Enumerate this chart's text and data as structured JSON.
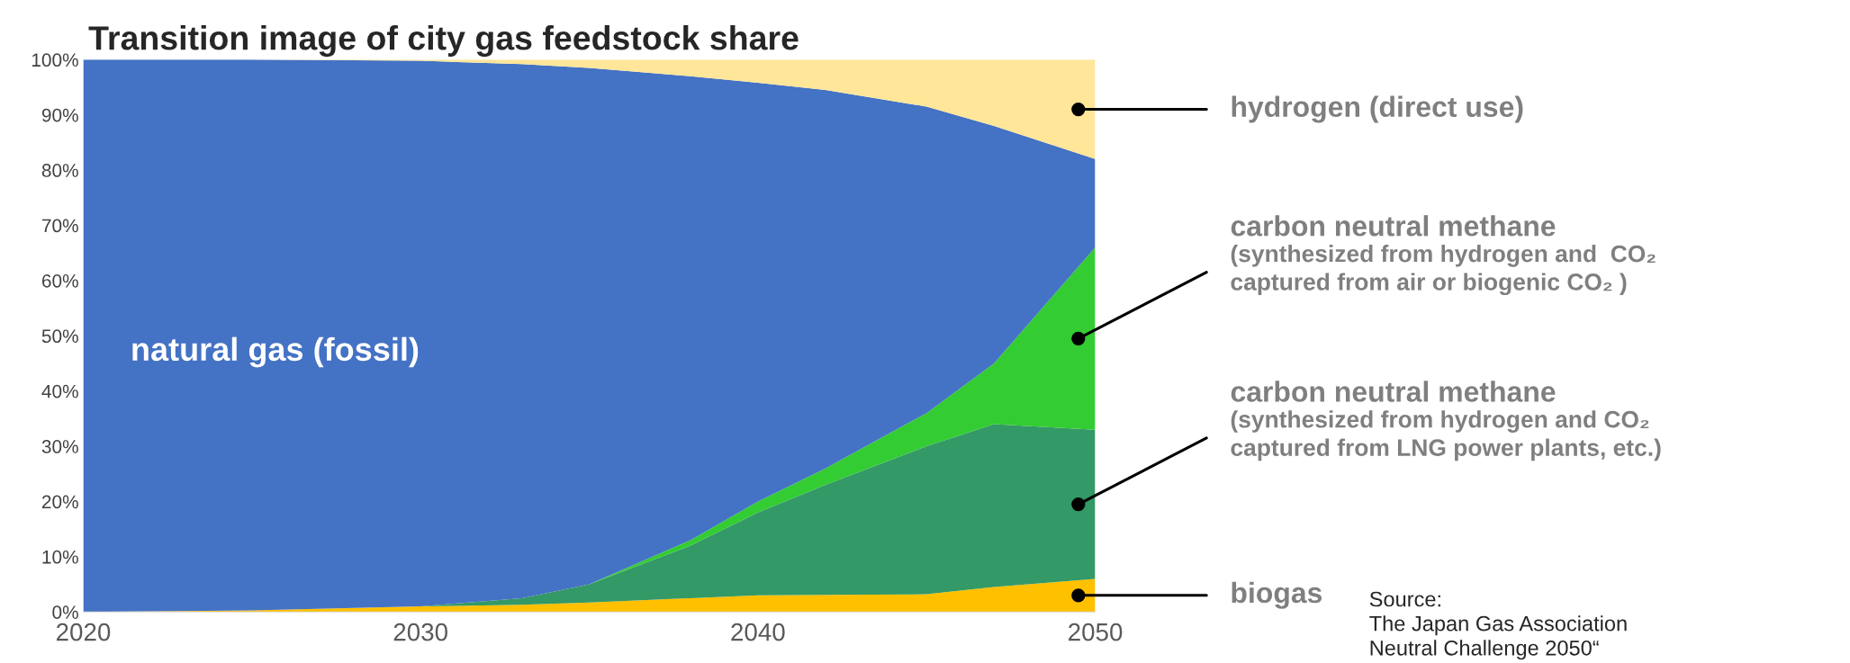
{
  "chart_data": {
    "type": "area",
    "stacked": true,
    "title": "Transition image of city gas feedstock share",
    "x": [
      2020,
      2025,
      2030,
      2033,
      2035,
      2038,
      2040,
      2042,
      2045,
      2047,
      2050
    ],
    "series": [
      {
        "name": "biogas",
        "color": "#ffc000",
        "values": [
          0,
          0.3,
          1,
          1.3,
          1.7,
          2.5,
          3,
          3.1,
          3.2,
          4.5,
          6
        ]
      },
      {
        "name": "carbon neutral methane\n(synthesized from hydrogen and CO₂\ncaptured from LNG power plants, etc.)",
        "color": "#339966",
        "values": [
          0,
          0,
          0,
          1.2,
          3.3,
          9.5,
          15,
          19.9,
          26.8,
          29.5,
          27
        ]
      },
      {
        "name": "carbon neutral methane\n(synthesized from hydrogen and  CO₂\ncaptured from air or biogenic CO₂ )",
        "color": "#33cc33",
        "values": [
          0,
          0,
          0,
          0,
          0,
          1,
          2,
          3,
          6,
          11,
          33
        ]
      },
      {
        "name": "natural gas (fossil)",
        "color": "#4472c4",
        "values": [
          100,
          99.7,
          98.8,
          96.7,
          93.5,
          84,
          75.8,
          68.5,
          55.5,
          43,
          16
        ]
      },
      {
        "name": "hydrogen (direct use)",
        "color": "#ffe699",
        "values": [
          0,
          0,
          0.2,
          0.8,
          1.5,
          3,
          4.2,
          5.5,
          8.5,
          12,
          18
        ]
      }
    ],
    "xlim": [
      2020,
      2050
    ],
    "xticks": [
      2020,
      2030,
      2040,
      2050
    ],
    "ylim": [
      0,
      100
    ],
    "yticks": [
      {
        "value": 0,
        "label": "0%"
      },
      {
        "value": 10,
        "label": "10%"
      },
      {
        "value": 20,
        "label": "20%"
      },
      {
        "value": 30,
        "label": "30%"
      },
      {
        "value": 40,
        "label": "40%"
      },
      {
        "value": 50,
        "label": "50%"
      },
      {
        "value": 60,
        "label": "60%"
      },
      {
        "value": 70,
        "label": "70%"
      },
      {
        "value": 80,
        "label": "80%"
      },
      {
        "value": 90,
        "label": "90%"
      },
      {
        "value": 100,
        "label": "100%"
      }
    ],
    "grid": false,
    "legend": false,
    "annotations": [
      "Source:\nThe Japan Gas Association\nNeutral Challenge 2050“"
    ]
  }
}
